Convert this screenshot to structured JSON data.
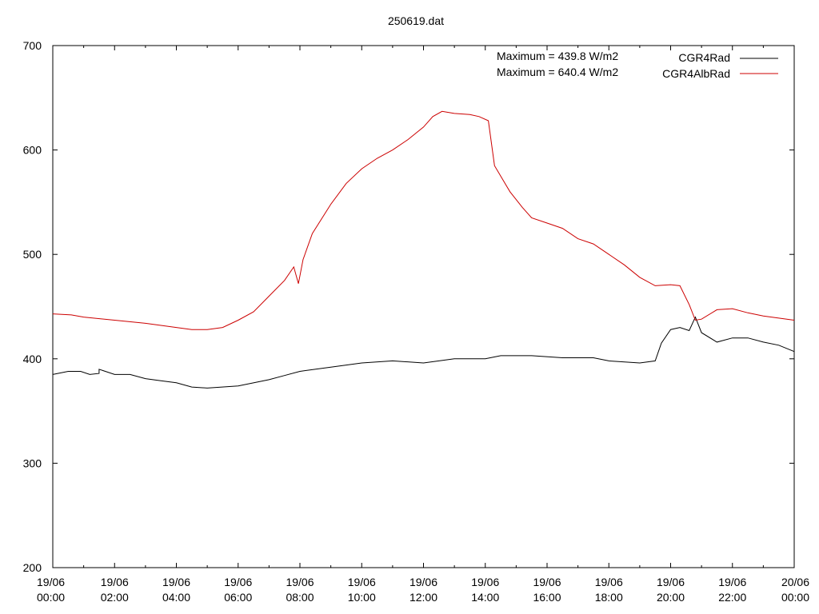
{
  "chart_data": {
    "type": "line",
    "title": "250619.dat",
    "ylim": [
      200,
      700
    ],
    "yticks": [
      200,
      300,
      400,
      500,
      600,
      700
    ],
    "xlim_hours": [
      0,
      24
    ],
    "xticks": [
      {
        "hour": 0,
        "date": "19/06",
        "time": "00:00"
      },
      {
        "hour": 2,
        "date": "19/06",
        "time": "02:00"
      },
      {
        "hour": 4,
        "date": "19/06",
        "time": "04:00"
      },
      {
        "hour": 6,
        "date": "19/06",
        "time": "06:00"
      },
      {
        "hour": 8,
        "date": "19/06",
        "time": "08:00"
      },
      {
        "hour": 10,
        "date": "19/06",
        "time": "10:00"
      },
      {
        "hour": 12,
        "date": "19/06",
        "time": "12:00"
      },
      {
        "hour": 14,
        "date": "19/06",
        "time": "14:00"
      },
      {
        "hour": 16,
        "date": "19/06",
        "time": "16:00"
      },
      {
        "hour": 18,
        "date": "19/06",
        "time": "18:00"
      },
      {
        "hour": 20,
        "date": "19/06",
        "time": "20:00"
      },
      {
        "hour": 22,
        "date": "19/06",
        "time": "22:00"
      },
      {
        "hour": 24,
        "date": "20/06",
        "time": "00:00"
      }
    ],
    "annotations": [
      "Maximum = 439.8 W/m2",
      "Maximum = 640.4 W/m2"
    ],
    "legend_position": "top-right",
    "grid": false,
    "series": [
      {
        "name": "CGR4Rad",
        "color": "#000000",
        "points": [
          [
            0,
            385
          ],
          [
            0.5,
            388
          ],
          [
            0.9,
            388
          ],
          [
            1.2,
            385
          ],
          [
            1.5,
            386
          ],
          [
            1.5,
            390
          ],
          [
            1.7,
            388
          ],
          [
            2.0,
            385
          ],
          [
            2.5,
            385
          ],
          [
            3.0,
            381
          ],
          [
            3.5,
            379
          ],
          [
            4.0,
            377
          ],
          [
            4.5,
            373
          ],
          [
            5.0,
            372
          ],
          [
            6.0,
            374
          ],
          [
            7.0,
            380
          ],
          [
            7.5,
            384
          ],
          [
            8.0,
            388
          ],
          [
            9.0,
            392
          ],
          [
            10.0,
            396
          ],
          [
            11.0,
            398
          ],
          [
            12.0,
            396
          ],
          [
            13.0,
            400
          ],
          [
            14.0,
            400
          ],
          [
            14.5,
            403
          ],
          [
            15.5,
            403
          ],
          [
            16.5,
            401
          ],
          [
            17.5,
            401
          ],
          [
            18.0,
            398
          ],
          [
            19.0,
            396
          ],
          [
            19.5,
            398
          ],
          [
            19.7,
            415
          ],
          [
            20.0,
            428
          ],
          [
            20.3,
            430
          ],
          [
            20.6,
            427
          ],
          [
            20.8,
            440
          ],
          [
            21.0,
            425
          ],
          [
            21.5,
            416
          ],
          [
            22.0,
            420
          ],
          [
            22.5,
            420
          ],
          [
            23.0,
            416
          ],
          [
            23.5,
            413
          ],
          [
            24.0,
            407
          ]
        ]
      },
      {
        "name": "CGR4AlbRad",
        "color": "#cc0000",
        "points": [
          [
            0,
            443
          ],
          [
            0.6,
            442
          ],
          [
            1.0,
            440
          ],
          [
            2.0,
            437
          ],
          [
            3.0,
            434
          ],
          [
            4.0,
            430
          ],
          [
            4.5,
            428
          ],
          [
            5.0,
            428
          ],
          [
            5.5,
            430
          ],
          [
            6.0,
            437
          ],
          [
            6.5,
            445
          ],
          [
            7.0,
            460
          ],
          [
            7.5,
            475
          ],
          [
            7.8,
            488
          ],
          [
            7.95,
            472
          ],
          [
            8.1,
            495
          ],
          [
            8.4,
            520
          ],
          [
            9.0,
            548
          ],
          [
            9.5,
            568
          ],
          [
            10.0,
            582
          ],
          [
            10.5,
            592
          ],
          [
            11.0,
            600
          ],
          [
            11.5,
            610
          ],
          [
            12.0,
            622
          ],
          [
            12.3,
            632
          ],
          [
            12.6,
            637
          ],
          [
            13.0,
            635
          ],
          [
            13.5,
            634
          ],
          [
            13.8,
            632
          ],
          [
            14.1,
            628
          ],
          [
            14.3,
            585
          ],
          [
            14.8,
            560
          ],
          [
            15.2,
            545
          ],
          [
            15.5,
            535
          ],
          [
            16.0,
            530
          ],
          [
            16.5,
            525
          ],
          [
            17.0,
            515
          ],
          [
            17.5,
            510
          ],
          [
            18.0,
            500
          ],
          [
            18.5,
            490
          ],
          [
            19.0,
            478
          ],
          [
            19.5,
            470
          ],
          [
            20.0,
            471
          ],
          [
            20.3,
            470
          ],
          [
            20.6,
            452
          ],
          [
            20.8,
            437
          ],
          [
            21.0,
            438
          ],
          [
            21.5,
            447
          ],
          [
            22.0,
            448
          ],
          [
            22.5,
            444
          ],
          [
            23.0,
            441
          ],
          [
            23.5,
            439
          ],
          [
            24.0,
            437
          ]
        ]
      }
    ]
  }
}
